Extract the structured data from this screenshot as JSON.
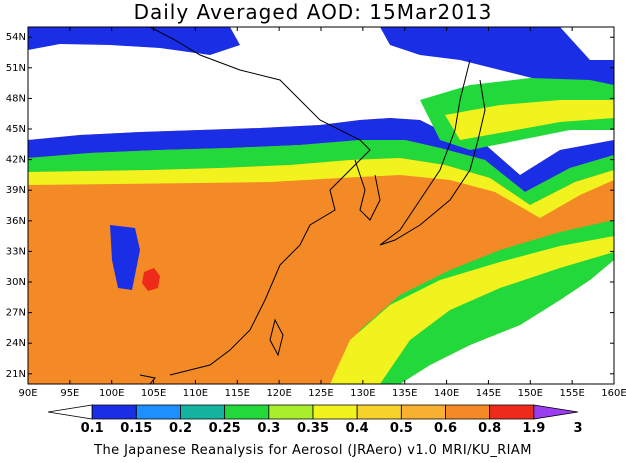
{
  "title": "Daily Averaged AOD: 15Mar2013",
  "credit": "The Japanese Reanalysis for Aerosol (JRAero) v1.0 MRI/KU_RIAM",
  "lat_labels": [
    "54N",
    "51N",
    "48N",
    "45N",
    "42N",
    "39N",
    "36N",
    "33N",
    "30N",
    "27N",
    "24N",
    "21N"
  ],
  "lon_labels": [
    "90E",
    "95E",
    "100E",
    "105E",
    "110E",
    "115E",
    "120E",
    "125E",
    "130E",
    "135E",
    "140E",
    "145E",
    "150E",
    "155E",
    "160E"
  ],
  "colorbar": {
    "levels": [
      "0.1",
      "0.15",
      "0.2",
      "0.25",
      "0.3",
      "0.35",
      "0.4",
      "0.5",
      "0.6",
      "0.8",
      "1.9",
      "3"
    ],
    "colors": [
      "#ffffff",
      "#1a2ee6",
      "#1e8fff",
      "#15b4a0",
      "#22d83a",
      "#a8ee2a",
      "#f2f21e",
      "#f6d22a",
      "#f8b030",
      "#f38a26",
      "#ee2a1a",
      "#9a3cf0"
    ]
  },
  "map": {
    "lon_range": [
      90,
      160
    ],
    "lat_range": [
      20,
      55
    ],
    "palette": {
      "white": "#ffffff",
      "blue": "#1a2ee6",
      "lightblue": "#1e8fff",
      "teal": "#15b4a0",
      "green": "#22d83a",
      "lime": "#a8ee2a",
      "yellow": "#f2f21e",
      "gold": "#f6d22a",
      "lightorange": "#f8b030",
      "orange": "#f38a26",
      "red": "#ee2a1a",
      "coast": "#000000"
    }
  }
}
